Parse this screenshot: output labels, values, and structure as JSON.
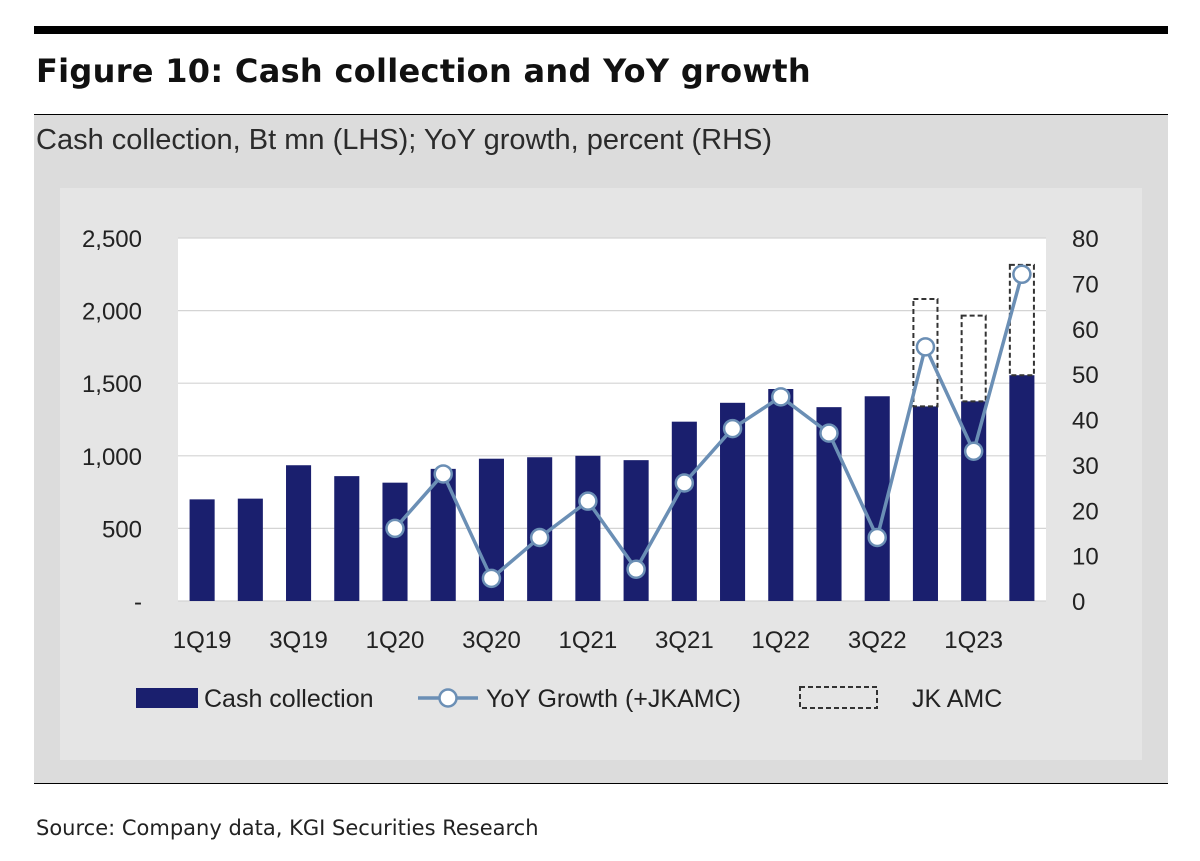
{
  "figure_title": "Figure 10: Cash collection and YoY growth",
  "subtitle": "Cash collection, Bt mn (LHS); YoY growth, percent (RHS)",
  "source": "Source: Company data, KGI Securities Research",
  "colors": {
    "bar": "#1a1f6e",
    "line": "#6b8fb5",
    "marker_fill": "#ffffff",
    "dashed": "#333333"
  },
  "chart_data": {
    "type": "bar",
    "title": "Cash collection and YoY growth",
    "categories": [
      "1Q19",
      "2Q19",
      "3Q19",
      "4Q19",
      "1Q20",
      "2Q20",
      "3Q20",
      "4Q20",
      "1Q21",
      "2Q21",
      "3Q21",
      "4Q21",
      "1Q22",
      "2Q22",
      "3Q22",
      "4Q22",
      "1Q23",
      "2Q23"
    ],
    "tick_labels": [
      "1Q19",
      "3Q19",
      "1Q20",
      "3Q20",
      "1Q21",
      "3Q21",
      "1Q22",
      "3Q22",
      "1Q23"
    ],
    "series": [
      {
        "name": "Cash collection",
        "axis": "left",
        "kind": "bar",
        "values": [
          700,
          705,
          935,
          860,
          815,
          910,
          980,
          990,
          1000,
          970,
          1235,
          1365,
          1460,
          1335,
          1410,
          1340,
          1375,
          1555
        ]
      },
      {
        "name": "YoY Growth (+JKAMC)",
        "axis": "right",
        "kind": "line",
        "values": [
          null,
          null,
          null,
          null,
          16,
          28,
          5,
          14,
          22,
          7,
          26,
          38,
          45,
          37,
          14,
          56,
          33,
          72
        ]
      },
      {
        "name": "JK AMC",
        "axis": "left",
        "kind": "stacked-dashed",
        "values": [
          0,
          0,
          0,
          0,
          0,
          0,
          0,
          0,
          0,
          0,
          0,
          0,
          0,
          0,
          0,
          740,
          590,
          760
        ]
      }
    ],
    "y_left": {
      "range": [
        0,
        2500
      ],
      "ticks": [
        0,
        500,
        1000,
        1500,
        2000,
        2500
      ],
      "tick_labels": [
        "-",
        "500",
        "1,000",
        "1,500",
        "2,000",
        "2,500"
      ]
    },
    "y_right": {
      "range": [
        0,
        80
      ],
      "ticks": [
        0,
        10,
        20,
        30,
        40,
        50,
        60,
        70,
        80
      ],
      "tick_labels": [
        "0",
        "10",
        "20",
        "30",
        "40",
        "50",
        "60",
        "70",
        "80"
      ]
    },
    "grid": true,
    "legend": {
      "placement": "bottom",
      "items": [
        "Cash collection",
        "YoY Growth (+JKAMC)",
        "JK AMC"
      ]
    }
  }
}
